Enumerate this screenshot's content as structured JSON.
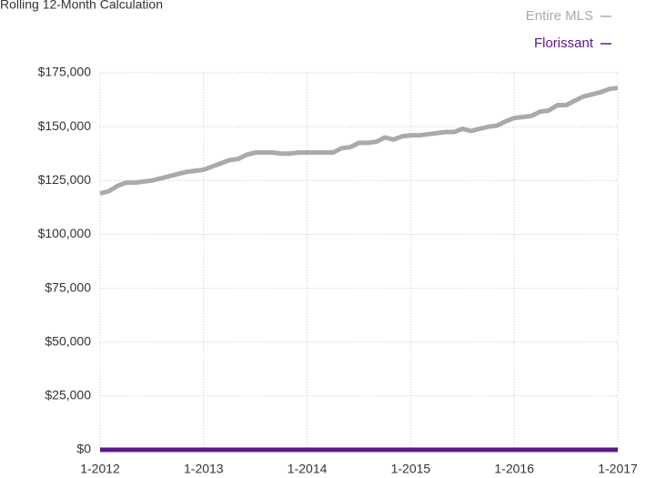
{
  "chart_data": {
    "type": "line",
    "title": "Rolling 12-Month Calculation",
    "x": [
      2012,
      2012.083,
      2012.167,
      2012.25,
      2012.333,
      2012.417,
      2012.5,
      2012.583,
      2012.667,
      2012.75,
      2012.833,
      2012.917,
      2013,
      2013.083,
      2013.167,
      2013.25,
      2013.333,
      2013.417,
      2013.5,
      2013.583,
      2013.667,
      2013.75,
      2013.833,
      2013.917,
      2014,
      2014.083,
      2014.167,
      2014.25,
      2014.333,
      2014.417,
      2014.5,
      2014.583,
      2014.667,
      2014.75,
      2014.833,
      2014.917,
      2015,
      2015.083,
      2015.167,
      2015.25,
      2015.333,
      2015.417,
      2015.5,
      2015.583,
      2015.667,
      2015.75,
      2015.833,
      2015.917,
      2016,
      2016.083,
      2016.167,
      2016.25,
      2016.333,
      2016.417,
      2016.5,
      2016.583,
      2016.667,
      2016.75,
      2016.833,
      2016.917,
      2017
    ],
    "series": [
      {
        "name": "Entire MLS",
        "color": "#aaaaaa",
        "values": [
          119000,
          120000,
          122500,
          124000,
          124000,
          124500,
          125000,
          126000,
          127000,
          128000,
          129000,
          129500,
          130000,
          131500,
          133000,
          134500,
          135000,
          137000,
          138000,
          138000,
          138000,
          137500,
          137500,
          138000,
          138000,
          138000,
          138000,
          138000,
          140000,
          140500,
          142500,
          142500,
          143000,
          145000,
          144000,
          145500,
          146000,
          146000,
          146500,
          147000,
          147500,
          147500,
          149000,
          148000,
          149000,
          150000,
          150500,
          152500,
          154000,
          154500,
          155000,
          157000,
          157500,
          160000,
          160000,
          162000,
          164000,
          165000,
          166000,
          167500,
          168000
        ]
      },
      {
        "name": "Florissant",
        "color": "#5b1a8c",
        "values": [
          0,
          0,
          0,
          0,
          0,
          0,
          0,
          0,
          0,
          0,
          0,
          0,
          0,
          0,
          0,
          0,
          0,
          0,
          0,
          0,
          0,
          0,
          0,
          0,
          0,
          0,
          0,
          0,
          0,
          0,
          0,
          0,
          0,
          0,
          0,
          0,
          0,
          0,
          0,
          0,
          0,
          0,
          0,
          0,
          0,
          0,
          0,
          0,
          0,
          0,
          0,
          0,
          0,
          0,
          0,
          0,
          0,
          0,
          0,
          0,
          0
        ]
      }
    ],
    "xlim": [
      2012,
      2017
    ],
    "xticks": [
      {
        "value": 2012,
        "label": "1-2012"
      },
      {
        "value": 2013,
        "label": "1-2013"
      },
      {
        "value": 2014,
        "label": "1-2014"
      },
      {
        "value": 2015,
        "label": "1-2015"
      },
      {
        "value": 2016,
        "label": "1-2016"
      },
      {
        "value": 2017,
        "label": "1-2017"
      }
    ],
    "ylim": [
      0,
      175000
    ],
    "yticks": [
      {
        "value": 0,
        "label": "$0"
      },
      {
        "value": 25000,
        "label": "$25,000"
      },
      {
        "value": 50000,
        "label": "$50,000"
      },
      {
        "value": 75000,
        "label": "$75,000"
      },
      {
        "value": 100000,
        "label": "$100,000"
      },
      {
        "value": 125000,
        "label": "$125,000"
      },
      {
        "value": 150000,
        "label": "$150,000"
      },
      {
        "value": 175000,
        "label": "$175,000"
      }
    ],
    "grid": true,
    "legend": "top-right"
  }
}
